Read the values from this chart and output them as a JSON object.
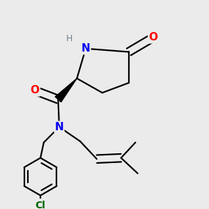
{
  "background_color": "#ebebeb",
  "atom_colors": {
    "C": "#000000",
    "N": "#0000ee",
    "O": "#ff0000",
    "Cl": "#006400",
    "H": "#708090"
  },
  "bond_color": "#000000",
  "bond_width": 1.6,
  "font_size_atoms": 11,
  "font_size_small": 9,
  "figsize": [
    3.0,
    3.0
  ],
  "dpi": 100
}
